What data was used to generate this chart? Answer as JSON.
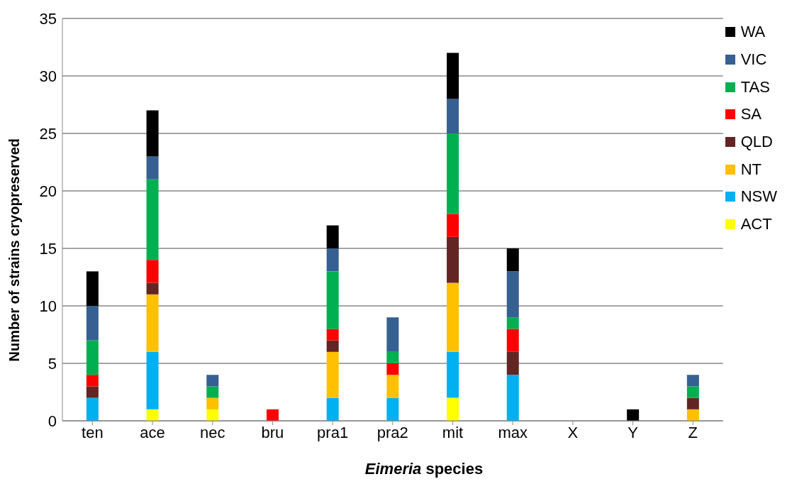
{
  "chart_data": {
    "type": "bar",
    "stacked": true,
    "xlabel": "Eimeria species",
    "ylabel": "Number of strains cryopreserved",
    "categories": [
      "ten",
      "ace",
      "nec",
      "bru",
      "pra1",
      "pra2",
      "mit",
      "max",
      "X",
      "Y",
      "Z"
    ],
    "series": [
      {
        "name": "ACT",
        "color": "#ffff00",
        "values": [
          0,
          1,
          1,
          0,
          0,
          0,
          2,
          0,
          0,
          0,
          0
        ]
      },
      {
        "name": "NSW",
        "color": "#00b0f0",
        "values": [
          2,
          5,
          0,
          0,
          2,
          2,
          4,
          4,
          0,
          0,
          0
        ]
      },
      {
        "name": "NT",
        "color": "#ffc000",
        "values": [
          0,
          5,
          1,
          0,
          4,
          2,
          6,
          0,
          0,
          0,
          1
        ]
      },
      {
        "name": "QLD",
        "color": "#632523",
        "values": [
          1,
          1,
          0,
          0,
          1,
          0,
          4,
          2,
          0,
          0,
          1
        ]
      },
      {
        "name": "SA",
        "color": "#ff0000",
        "values": [
          1,
          2,
          0,
          1,
          1,
          1,
          2,
          2,
          0,
          0,
          0
        ]
      },
      {
        "name": "TAS",
        "color": "#00b050",
        "values": [
          3,
          7,
          1,
          0,
          5,
          1,
          7,
          1,
          0,
          0,
          1
        ]
      },
      {
        "name": "VIC",
        "color": "#376092",
        "values": [
          3,
          2,
          1,
          0,
          2,
          3,
          3,
          4,
          0,
          0,
          1
        ]
      },
      {
        "name": "WA",
        "color": "#000000",
        "values": [
          3,
          4,
          0,
          0,
          2,
          0,
          4,
          2,
          0,
          1,
          0
        ]
      }
    ],
    "ylim": [
      0,
      35
    ],
    "yticks": [
      0,
      5,
      10,
      15,
      20,
      25,
      30,
      35
    ],
    "grid": "y",
    "legend": "top right"
  }
}
